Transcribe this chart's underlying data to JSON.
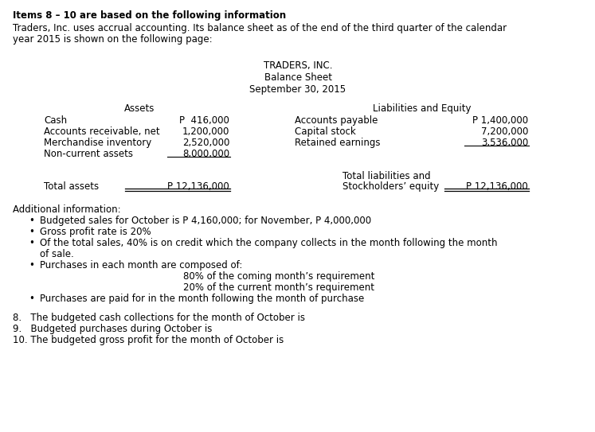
{
  "bg_color": "#ffffff",
  "title_bold": "Items 8 – 10 are based on the following information",
  "intro_line1": "Traders, Inc. uses accrual accounting. Its balance sheet as of the end of the third quarter of the calendar",
  "intro_line2": "year 2015 is shown on the following page:",
  "company_name": "TRADERS, INC.",
  "sheet_title": "Balance Sheet",
  "sheet_date": "September 30, 2015",
  "assets_header": "Assets",
  "liabilities_header": "Liabilities and Equity",
  "assets": [
    [
      "Cash",
      "P  416,000"
    ],
    [
      "Accounts receivable, net",
      "1,200,000"
    ],
    [
      "Merchandise inventory",
      "2,520,000"
    ],
    [
      "Non-current assets",
      "8,000,000"
    ]
  ],
  "liabilities": [
    [
      "Accounts payable",
      "P 1,400,000"
    ],
    [
      "Capital stock",
      "7,200,000"
    ],
    [
      "Retained earnings",
      "3,536,000"
    ]
  ],
  "total_assets_label": "Total assets",
  "total_assets_value": "P 12,136,000",
  "total_liabilities_label1": "Total liabilities and",
  "total_liabilities_label2": "Stockholders’ equity",
  "total_liabilities_value": "P 12,136,000",
  "additional_info_header": "Additional information:",
  "bullet1": "Budgeted sales for October is P 4,160,000; for November, P 4,000,000",
  "bullet2": "Gross profit rate is 20%",
  "bullet3a": "Of the total sales, 40% is on credit which the company collects in the month following the month",
  "bullet3b": "of sale.",
  "bullet4a": "Purchases in each month are composed of:",
  "bullet4b": "80% of the coming month’s requirement",
  "bullet4c": "20% of the current month’s requirement",
  "bullet5": "Purchases are paid for in the month following the month of purchase",
  "q8": "8.   The budgeted cash collections for the month of October is",
  "q9": "9.   Budgeted purchases during October is",
  "q10": "10. The budgeted gross profit for the month of October is",
  "font_size": 8.5
}
